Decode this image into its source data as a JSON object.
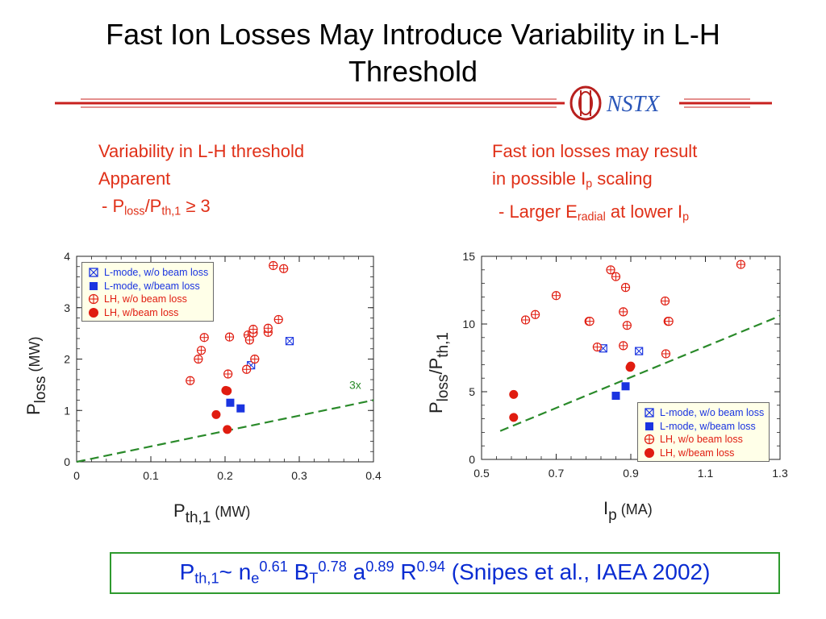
{
  "slide": {
    "title_line1": "Fast Ion Losses May Introduce Variability in L-H",
    "title_line2": "Threshold",
    "logo_text": "NSTX"
  },
  "left_text": {
    "line1": "Variability in L-H threshold",
    "line2": "Apparent",
    "line3_prefix": " - P",
    "line3_sub1": "loss",
    "line3_mid": "/P",
    "line3_sub2": "th,1",
    "line3_suffix": " ≥ 3"
  },
  "right_text": {
    "line1": "Fast ion losses may result",
    "line2_prefix": "in possible I",
    "line2_sub": "p",
    "line2_suffix": " scaling",
    "line3_prefix": "  - Larger E",
    "line3_sub": "radial",
    "line3_mid": " at lower I",
    "line3_sub2": "p"
  },
  "formula": {
    "t1": "P",
    "s1": "th,1",
    "t2": "~ n",
    "s2": "e",
    "p2": "0.61",
    "t3": " B",
    "s3": "T",
    "p3": "0.78",
    "t4": " a",
    "p4": "0.89",
    "t5": " R",
    "p5": "0.94",
    "t6": " (Snipes et al., IAEA 2002)"
  },
  "legend": {
    "items": [
      "L-mode, w/o beam loss",
      "L-mode, w/beam loss",
      "LH, w/o beam loss",
      "LH, w/beam loss"
    ]
  },
  "colors": {
    "title_rule": "#c8201e",
    "accent_text": "#e03018",
    "lmode": "#1a34e0",
    "lh": "#e01c10",
    "trend": "#2a8a2a",
    "formula_text": "#0a2cd2",
    "formula_border": "#2e9a2e",
    "legend_bg": "#ffffe8"
  },
  "chart_data": [
    {
      "type": "scatter",
      "xlabel_main": "P",
      "xlabel_sub": "th,1",
      "xlabel_unit": " (MW)",
      "ylabel_main": "P",
      "ylabel_sub": "loss",
      "ylabel_unit": " (MW)",
      "xlim": [
        0,
        0.4
      ],
      "ylim": [
        0,
        4
      ],
      "xticks": [
        0,
        0.1,
        0.2,
        0.3,
        0.4
      ],
      "xtick_labels": [
        "0",
        "0.1",
        "0.2",
        "0.3",
        "0.4"
      ],
      "yticks": [
        0,
        1,
        2,
        3,
        4
      ],
      "ytick_labels": [
        "0",
        "1",
        "2",
        "3",
        "4"
      ],
      "trend": {
        "label": "3x",
        "x": [
          0,
          0.4
        ],
        "y": [
          0,
          1.2
        ]
      },
      "series": [
        {
          "name": "L-mode, w/o beam loss",
          "marker": "box-x",
          "points": [
            [
              0.235,
              1.88
            ],
            [
              0.287,
              2.35
            ]
          ]
        },
        {
          "name": "L-mode, w/beam loss",
          "marker": "square",
          "points": [
            [
              0.207,
              1.15
            ],
            [
              0.221,
              1.04
            ]
          ]
        },
        {
          "name": "LH, w/o beam loss",
          "marker": "circle-plus",
          "points": [
            [
              0.153,
              1.58
            ],
            [
              0.164,
              2.0
            ],
            [
              0.168,
              2.17
            ],
            [
              0.172,
              2.42
            ],
            [
              0.204,
              1.71
            ],
            [
              0.206,
              2.43
            ],
            [
              0.229,
              1.8
            ],
            [
              0.231,
              2.47
            ],
            [
              0.233,
              2.37
            ],
            [
              0.238,
              2.51
            ],
            [
              0.238,
              2.58
            ],
            [
              0.24,
              2.0
            ],
            [
              0.258,
              2.52
            ],
            [
              0.258,
              2.6
            ],
            [
              0.265,
              3.82
            ],
            [
              0.272,
              2.77
            ],
            [
              0.279,
              3.76
            ]
          ]
        },
        {
          "name": "LH, w/beam loss",
          "marker": "dot",
          "points": [
            [
              0.188,
              0.92
            ],
            [
              0.201,
              1.39
            ],
            [
              0.203,
              0.63
            ],
            [
              0.203,
              1.38
            ]
          ]
        }
      ]
    },
    {
      "type": "scatter",
      "xlabel_main": "I",
      "xlabel_sub": "p",
      "xlabel_unit": " (MA)",
      "ylabel_main": "P",
      "ylabel_sub": "loss",
      "ylabel_unit": "/P",
      "ylabel_sub2": "th,1",
      "xlim": [
        0.5,
        1.3
      ],
      "ylim": [
        0,
        15
      ],
      "xticks": [
        0.5,
        0.7,
        0.9,
        1.1,
        1.3
      ],
      "xtick_labels": [
        "0.5",
        "0.7",
        "0.9",
        "1.1",
        "1.3"
      ],
      "yticks": [
        0,
        5,
        10,
        15
      ],
      "ytick_labels": [
        "0",
        "5",
        "10",
        "15"
      ],
      "trend": {
        "label": "",
        "x": [
          0.55,
          1.3
        ],
        "y": [
          2.1,
          10.6
        ]
      },
      "series": [
        {
          "name": "L-mode, w/o beam loss",
          "marker": "box-x",
          "points": [
            [
              0.826,
              8.2
            ],
            [
              0.922,
              8.0
            ]
          ]
        },
        {
          "name": "L-mode, w/beam loss",
          "marker": "square",
          "points": [
            [
              0.86,
              4.7
            ],
            [
              0.886,
              5.4
            ]
          ]
        },
        {
          "name": "LH, w/o beam loss",
          "marker": "circle-plus",
          "points": [
            [
              0.618,
              10.3
            ],
            [
              0.644,
              10.7
            ],
            [
              0.7,
              12.1
            ],
            [
              0.788,
              10.2
            ],
            [
              0.79,
              10.2
            ],
            [
              0.81,
              8.3
            ],
            [
              0.846,
              14.0
            ],
            [
              0.86,
              13.5
            ],
            [
              0.88,
              10.9
            ],
            [
              0.88,
              8.4
            ],
            [
              0.886,
              12.7
            ],
            [
              0.89,
              9.9
            ],
            [
              0.992,
              11.7
            ],
            [
              0.994,
              7.8
            ],
            [
              1.0,
              10.2
            ],
            [
              1.002,
              10.2
            ],
            [
              1.195,
              14.4
            ]
          ]
        },
        {
          "name": "LH, w/beam loss",
          "marker": "dot",
          "points": [
            [
              0.586,
              4.8
            ],
            [
              0.586,
              3.1
            ],
            [
              0.898,
              6.8
            ],
            [
              0.9,
              6.9
            ]
          ]
        }
      ]
    }
  ]
}
